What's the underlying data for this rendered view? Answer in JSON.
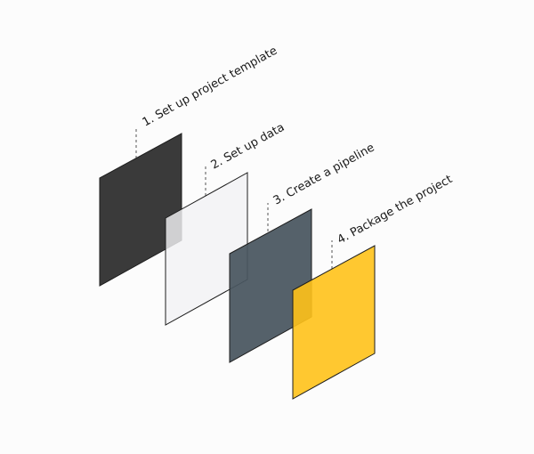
{
  "steps": [
    {
      "label": "1. Set up project template",
      "fill": "#3a3a3a",
      "opacity": 1
    },
    {
      "label": "2. Set up data",
      "fill": "#f1f2f4",
      "opacity": 0.82
    },
    {
      "label": "3. Create a pipeline",
      "fill": "#48555f",
      "opacity": 0.93
    },
    {
      "label": "4. Package the project",
      "fill": "#ffc21a",
      "opacity": 0.9
    }
  ]
}
